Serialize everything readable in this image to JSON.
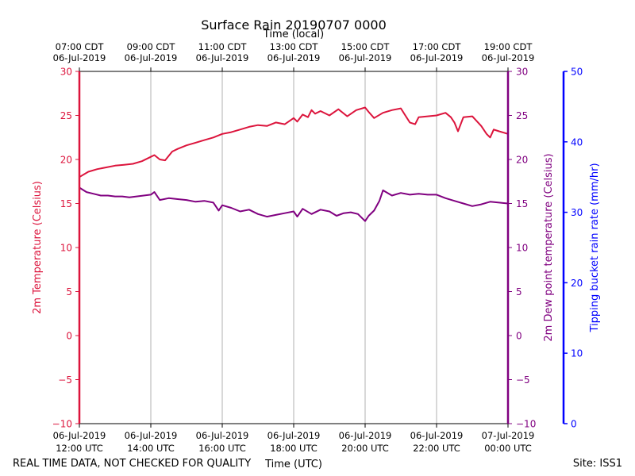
{
  "chart_data": {
    "type": "line",
    "title": "Surface Rain 20190707 0000",
    "top_xlabel": "Time (local)",
    "xlabel": "Time (UTC)",
    "left_ylabel": "2m Temperature (Celsius)",
    "right_ylabel": "2m Dew point temperature (Celsius)",
    "far_right_ylabel": "Tipping bucket rain rate (mm/hr)",
    "xlim": [
      0,
      12
    ],
    "ylim": [
      -10,
      30
    ],
    "rain_ylim": [
      0,
      50
    ],
    "temp_ticks": [
      -10,
      -5,
      0,
      5,
      10,
      15,
      20,
      25,
      30
    ],
    "temp_tick_labels": [
      "−10",
      "−5",
      "0",
      "5",
      "10",
      "15",
      "20",
      "25",
      "30"
    ],
    "rain_ticks": [
      0,
      10,
      20,
      30,
      40,
      50
    ],
    "rain_tick_labels": [
      "0",
      "10",
      "20",
      "30",
      "40",
      "50"
    ],
    "x_ticks": [
      0,
      2,
      4,
      6,
      8,
      10,
      12
    ],
    "x_tick_labels_bottom": [
      {
        "date": "06-Jul-2019",
        "time": "12:00 UTC"
      },
      {
        "date": "06-Jul-2019",
        "time": "14:00 UTC"
      },
      {
        "date": "06-Jul-2019",
        "time": "16:00 UTC"
      },
      {
        "date": "06-Jul-2019",
        "time": "18:00 UTC"
      },
      {
        "date": "06-Jul-2019",
        "time": "20:00 UTC"
      },
      {
        "date": "06-Jul-2019",
        "time": "22:00 UTC"
      },
      {
        "date": "07-Jul-2019",
        "time": "00:00 UTC"
      }
    ],
    "x_tick_labels_top": [
      {
        "time": "07:00 CDT",
        "date": "06-Jul-2019"
      },
      {
        "time": "09:00 CDT",
        "date": "06-Jul-2019"
      },
      {
        "time": "11:00 CDT",
        "date": "06-Jul-2019"
      },
      {
        "time": "13:00 CDT",
        "date": "06-Jul-2019"
      },
      {
        "time": "15:00 CDT",
        "date": "06-Jul-2019"
      },
      {
        "time": "17:00 CDT",
        "date": "06-Jul-2019"
      },
      {
        "time": "19:00 CDT",
        "date": "06-Jul-2019"
      }
    ],
    "grid": "vertical",
    "series": [
      {
        "name": "2m Temperature",
        "color": "#dc143c",
        "x": [
          0,
          0.25,
          0.5,
          0.75,
          1,
          1.25,
          1.5,
          1.75,
          2,
          2.1,
          2.25,
          2.4,
          2.6,
          2.75,
          3,
          3.25,
          3.5,
          3.75,
          4,
          4.25,
          4.5,
          4.75,
          5,
          5.25,
          5.5,
          5.75,
          6,
          6.1,
          6.25,
          6.4,
          6.5,
          6.6,
          6.75,
          7,
          7.25,
          7.5,
          7.75,
          8,
          8.1,
          8.25,
          8.5,
          8.75,
          9,
          9.25,
          9.4,
          9.5,
          9.75,
          10,
          10.25,
          10.4,
          10.5,
          10.6,
          10.75,
          11,
          11.25,
          11.4,
          11.5,
          11.6,
          11.75,
          12
        ],
        "y": [
          18.0,
          18.6,
          18.9,
          19.1,
          19.3,
          19.4,
          19.5,
          19.8,
          20.3,
          20.5,
          20.0,
          19.9,
          20.9,
          21.2,
          21.6,
          21.9,
          22.2,
          22.5,
          22.9,
          23.1,
          23.4,
          23.7,
          23.9,
          23.8,
          24.2,
          24.0,
          24.7,
          24.3,
          25.1,
          24.8,
          25.6,
          25.2,
          25.5,
          25.0,
          25.7,
          24.9,
          25.6,
          25.9,
          25.4,
          24.7,
          25.3,
          25.6,
          25.8,
          24.2,
          24.0,
          24.8,
          24.9,
          25.0,
          25.3,
          24.8,
          24.2,
          23.2,
          24.8,
          24.9,
          23.8,
          22.9,
          22.5,
          23.4,
          23.2,
          22.9
        ]
      },
      {
        "name": "2m Dew point temperature",
        "color": "#800080",
        "x": [
          0,
          0.2,
          0.4,
          0.6,
          0.8,
          1,
          1.2,
          1.4,
          1.6,
          1.8,
          2,
          2.1,
          2.25,
          2.5,
          2.75,
          3,
          3.25,
          3.5,
          3.75,
          3.9,
          4,
          4.25,
          4.5,
          4.75,
          5,
          5.25,
          5.5,
          5.75,
          6,
          6.1,
          6.25,
          6.5,
          6.75,
          7,
          7.2,
          7.4,
          7.6,
          7.8,
          8,
          8.1,
          8.25,
          8.4,
          8.5,
          8.75,
          9,
          9.25,
          9.5,
          9.75,
          10,
          10.25,
          10.5,
          10.75,
          11,
          11.25,
          11.5,
          11.75,
          12
        ],
        "y": [
          16.8,
          16.3,
          16.1,
          15.9,
          15.9,
          15.8,
          15.8,
          15.7,
          15.8,
          15.9,
          16.0,
          16.3,
          15.4,
          15.6,
          15.5,
          15.4,
          15.2,
          15.3,
          15.1,
          14.2,
          14.8,
          14.5,
          14.1,
          14.3,
          13.8,
          13.5,
          13.7,
          13.9,
          14.1,
          13.5,
          14.4,
          13.8,
          14.3,
          14.1,
          13.6,
          13.9,
          14.0,
          13.8,
          13.0,
          13.6,
          14.2,
          15.3,
          16.5,
          15.9,
          16.2,
          16.0,
          16.1,
          16.0,
          16.0,
          15.6,
          15.3,
          15.0,
          14.7,
          14.9,
          15.2,
          15.1,
          15.0
        ]
      }
    ],
    "rain_series": {
      "name": "Tipping bucket rain rate",
      "color": "#0000ff",
      "values": []
    }
  },
  "footer": {
    "left": "REAL TIME DATA, NOT CHECKED FOR QUALITY",
    "right": "Site: ISS1"
  },
  "colors": {
    "temperature": "#dc143c",
    "dewpoint": "#800080",
    "rain": "#0000ff",
    "grid": "#b0b0b0"
  }
}
